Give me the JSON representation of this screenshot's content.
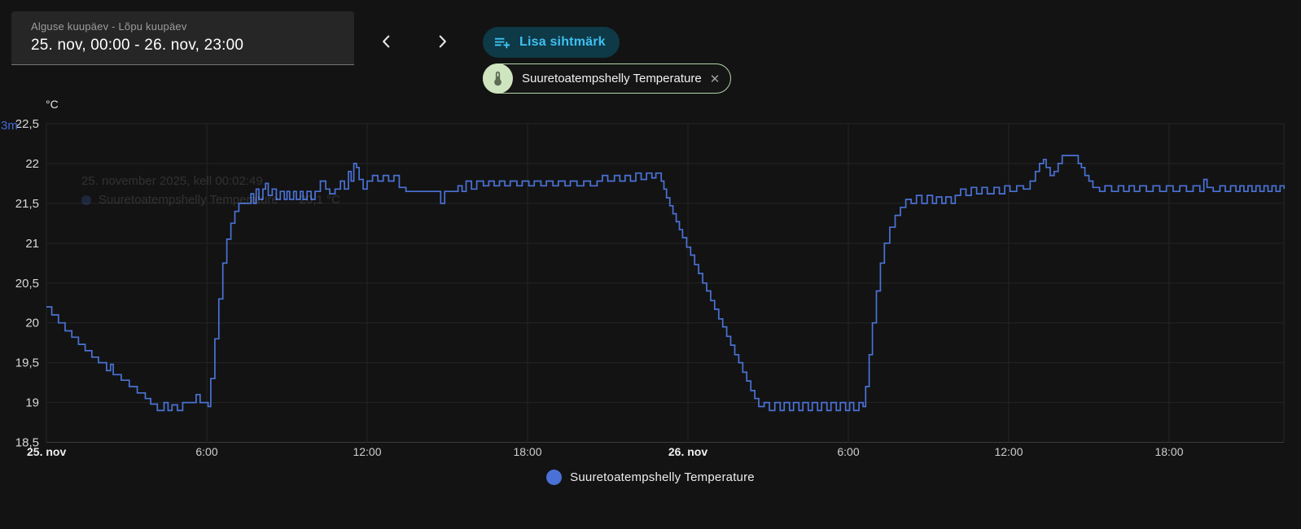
{
  "header": {
    "date_range": {
      "label": "Alguse kuupäev - Lõpu kuupäev",
      "value": "25. nov, 00:00 - 26. nov, 23:00"
    },
    "add_target": {
      "label": "Lisa sihtmärk"
    },
    "chip": {
      "label": "Suuretoatempshelly Temperature",
      "close_glyph": "✕"
    }
  },
  "icons": {
    "prev": "chevron-left",
    "next": "chevron-right",
    "add_target": "playlist-plus",
    "chip": "thermometer",
    "chip_close": "close-x",
    "legend_marker": "circle"
  },
  "colors": {
    "series_blue": "#4a72d6",
    "button_bg": "#0e3947",
    "button_text": "#3ec1f2",
    "chip_avatar_bg": "#cfe5bf",
    "chip_icon": "#5d6d55",
    "grid": "#242424",
    "axis_line": "#3a3a3a",
    "tick_text": "#d8d8d8"
  },
  "axis_overlay_text": "3m",
  "ghost_tooltip": {
    "line1": "25. november 2025, kell 00:02:49",
    "line2_label": "Suuretoatempshelly Temperature",
    "line2_value": "20,1 °C"
  },
  "chart_data": {
    "type": "line",
    "step": true,
    "title": "",
    "xlabel": "",
    "ylabel": "°C",
    "unit": "°C",
    "ylim": [
      18.5,
      22.5
    ],
    "x_range_hours": [
      0,
      46.3
    ],
    "grid": true,
    "legend_position": "bottom-center",
    "y_ticks": [
      {
        "value": 22.5,
        "label": "22,5"
      },
      {
        "value": 22.0,
        "label": "22"
      },
      {
        "value": 21.5,
        "label": "21,5"
      },
      {
        "value": 21.0,
        "label": "21"
      },
      {
        "value": 20.5,
        "label": "20,5"
      },
      {
        "value": 20.0,
        "label": "20"
      },
      {
        "value": 19.5,
        "label": "19,5"
      },
      {
        "value": 19.0,
        "label": "19"
      },
      {
        "value": 18.5,
        "label": "18,5"
      }
    ],
    "x_ticks": [
      {
        "hour": 0,
        "label": "25. nov",
        "bold": true
      },
      {
        "hour": 6,
        "label": "6:00",
        "bold": false
      },
      {
        "hour": 12,
        "label": "12:00",
        "bold": false
      },
      {
        "hour": 18,
        "label": "18:00",
        "bold": false
      },
      {
        "hour": 24,
        "label": "26. nov",
        "bold": true
      },
      {
        "hour": 30,
        "label": "6:00",
        "bold": false
      },
      {
        "hour": 36,
        "label": "12:00",
        "bold": false
      },
      {
        "hour": 42,
        "label": "18:00",
        "bold": false
      }
    ],
    "legend": [
      {
        "label": "Suuretoatempshelly Temperature",
        "color": "#4a72d6"
      }
    ],
    "series": [
      {
        "name": "Suuretoatempshelly Temperature",
        "color": "#4a72d6",
        "points": [
          [
            0,
            20.2
          ],
          [
            0.2,
            20.1
          ],
          [
            0.45,
            20.0
          ],
          [
            0.7,
            19.9
          ],
          [
            0.95,
            19.82
          ],
          [
            1.2,
            19.73
          ],
          [
            1.45,
            19.65
          ],
          [
            1.7,
            19.57
          ],
          [
            1.95,
            19.5
          ],
          [
            2.25,
            19.4
          ],
          [
            2.4,
            19.48
          ],
          [
            2.5,
            19.35
          ],
          [
            2.8,
            19.28
          ],
          [
            3.1,
            19.2
          ],
          [
            3.4,
            19.12
          ],
          [
            3.7,
            19.05
          ],
          [
            3.9,
            18.98
          ],
          [
            4.15,
            18.9
          ],
          [
            4.4,
            19.0
          ],
          [
            4.55,
            18.9
          ],
          [
            4.7,
            18.97
          ],
          [
            4.9,
            18.9
          ],
          [
            5.1,
            19.0
          ],
          [
            5.6,
            19.1
          ],
          [
            5.75,
            19.0
          ],
          [
            6.05,
            18.95
          ],
          [
            6.15,
            19.3
          ],
          [
            6.3,
            19.8
          ],
          [
            6.45,
            20.3
          ],
          [
            6.6,
            20.75
          ],
          [
            6.75,
            21.05
          ],
          [
            6.9,
            21.25
          ],
          [
            7.05,
            21.4
          ],
          [
            7.2,
            21.5
          ],
          [
            7.55,
            21.5
          ],
          [
            7.65,
            21.62
          ],
          [
            7.75,
            21.5
          ],
          [
            7.85,
            21.68
          ],
          [
            7.95,
            21.55
          ],
          [
            8.1,
            21.68
          ],
          [
            8.2,
            21.75
          ],
          [
            8.3,
            21.6
          ],
          [
            8.45,
            21.68
          ],
          [
            8.6,
            21.55
          ],
          [
            8.75,
            21.65
          ],
          [
            8.9,
            21.55
          ],
          [
            9.0,
            21.65
          ],
          [
            9.1,
            21.55
          ],
          [
            9.25,
            21.65
          ],
          [
            9.35,
            21.55
          ],
          [
            9.5,
            21.65
          ],
          [
            9.6,
            21.55
          ],
          [
            9.75,
            21.65
          ],
          [
            9.9,
            21.55
          ],
          [
            10.05,
            21.65
          ],
          [
            10.25,
            21.78
          ],
          [
            10.45,
            21.68
          ],
          [
            10.6,
            21.62
          ],
          [
            10.8,
            21.68
          ],
          [
            11.0,
            21.78
          ],
          [
            11.15,
            21.68
          ],
          [
            11.3,
            21.9
          ],
          [
            11.4,
            21.78
          ],
          [
            11.5,
            22.0
          ],
          [
            11.6,
            21.95
          ],
          [
            11.7,
            21.8
          ],
          [
            11.85,
            21.68
          ],
          [
            12.0,
            21.78
          ],
          [
            12.2,
            21.85
          ],
          [
            12.4,
            21.78
          ],
          [
            12.6,
            21.85
          ],
          [
            12.8,
            21.78
          ],
          [
            13.0,
            21.85
          ],
          [
            13.2,
            21.7
          ],
          [
            13.45,
            21.65
          ],
          [
            14.75,
            21.5
          ],
          [
            14.9,
            21.65
          ],
          [
            15.4,
            21.72
          ],
          [
            15.55,
            21.65
          ],
          [
            15.7,
            21.78
          ],
          [
            15.9,
            21.68
          ],
          [
            16.1,
            21.78
          ],
          [
            16.35,
            21.72
          ],
          [
            16.55,
            21.78
          ],
          [
            16.75,
            21.72
          ],
          [
            16.95,
            21.78
          ],
          [
            17.15,
            21.72
          ],
          [
            17.35,
            21.78
          ],
          [
            17.6,
            21.72
          ],
          [
            17.8,
            21.78
          ],
          [
            18.05,
            21.72
          ],
          [
            18.25,
            21.78
          ],
          [
            18.5,
            21.72
          ],
          [
            18.7,
            21.78
          ],
          [
            18.95,
            21.72
          ],
          [
            19.15,
            21.78
          ],
          [
            19.4,
            21.72
          ],
          [
            19.6,
            21.78
          ],
          [
            19.85,
            21.72
          ],
          [
            20.1,
            21.78
          ],
          [
            20.35,
            21.72
          ],
          [
            20.6,
            21.78
          ],
          [
            20.8,
            21.85
          ],
          [
            21.0,
            21.78
          ],
          [
            21.25,
            21.85
          ],
          [
            21.45,
            21.78
          ],
          [
            21.65,
            21.85
          ],
          [
            21.85,
            21.78
          ],
          [
            22.05,
            21.88
          ],
          [
            22.25,
            21.8
          ],
          [
            22.45,
            21.88
          ],
          [
            22.65,
            21.82
          ],
          [
            22.8,
            21.88
          ],
          [
            23.0,
            21.78
          ],
          [
            23.1,
            21.68
          ],
          [
            23.2,
            21.57
          ],
          [
            23.32,
            21.47
          ],
          [
            23.44,
            21.37
          ],
          [
            23.56,
            21.27
          ],
          [
            23.68,
            21.17
          ],
          [
            23.8,
            21.07
          ],
          [
            23.95,
            20.95
          ],
          [
            24.1,
            20.85
          ],
          [
            24.25,
            20.73
          ],
          [
            24.4,
            20.62
          ],
          [
            24.55,
            20.5
          ],
          [
            24.7,
            20.4
          ],
          [
            24.85,
            20.28
          ],
          [
            25.0,
            20.17
          ],
          [
            25.15,
            20.05
          ],
          [
            25.3,
            19.95
          ],
          [
            25.45,
            19.83
          ],
          [
            25.6,
            19.72
          ],
          [
            25.75,
            19.6
          ],
          [
            25.9,
            19.5
          ],
          [
            26.05,
            19.38
          ],
          [
            26.2,
            19.27
          ],
          [
            26.35,
            19.15
          ],
          [
            26.5,
            19.05
          ],
          [
            26.65,
            18.95
          ],
          [
            26.85,
            19.0
          ],
          [
            27.05,
            18.9
          ],
          [
            27.25,
            19.0
          ],
          [
            27.45,
            18.9
          ],
          [
            27.6,
            19.0
          ],
          [
            27.8,
            18.9
          ],
          [
            27.95,
            19.0
          ],
          [
            28.15,
            18.9
          ],
          [
            28.3,
            19.0
          ],
          [
            28.5,
            18.9
          ],
          [
            28.65,
            19.0
          ],
          [
            28.85,
            18.9
          ],
          [
            29.0,
            19.0
          ],
          [
            29.2,
            18.9
          ],
          [
            29.35,
            19.0
          ],
          [
            29.55,
            18.9
          ],
          [
            29.7,
            19.0
          ],
          [
            29.9,
            18.9
          ],
          [
            30.05,
            19.0
          ],
          [
            30.2,
            18.9
          ],
          [
            30.4,
            19.0
          ],
          [
            30.55,
            18.95
          ],
          [
            30.65,
            19.2
          ],
          [
            30.78,
            19.6
          ],
          [
            30.9,
            20.0
          ],
          [
            31.05,
            20.4
          ],
          [
            31.2,
            20.75
          ],
          [
            31.35,
            21.0
          ],
          [
            31.55,
            21.2
          ],
          [
            31.75,
            21.35
          ],
          [
            31.95,
            21.45
          ],
          [
            32.15,
            21.55
          ],
          [
            32.35,
            21.5
          ],
          [
            32.55,
            21.6
          ],
          [
            32.75,
            21.5
          ],
          [
            32.95,
            21.6
          ],
          [
            33.15,
            21.5
          ],
          [
            33.3,
            21.58
          ],
          [
            33.5,
            21.5
          ],
          [
            33.65,
            21.58
          ],
          [
            33.85,
            21.5
          ],
          [
            34.0,
            21.6
          ],
          [
            34.2,
            21.68
          ],
          [
            34.4,
            21.6
          ],
          [
            34.6,
            21.7
          ],
          [
            34.8,
            21.62
          ],
          [
            35.0,
            21.7
          ],
          [
            35.2,
            21.62
          ],
          [
            35.45,
            21.7
          ],
          [
            35.65,
            21.62
          ],
          [
            35.85,
            21.72
          ],
          [
            36.05,
            21.65
          ],
          [
            36.3,
            21.72
          ],
          [
            36.55,
            21.68
          ],
          [
            36.8,
            21.78
          ],
          [
            37.0,
            21.9
          ],
          [
            37.15,
            22.0
          ],
          [
            37.3,
            22.05
          ],
          [
            37.4,
            21.95
          ],
          [
            37.55,
            21.85
          ],
          [
            37.7,
            21.9
          ],
          [
            37.85,
            22.0
          ],
          [
            38.0,
            22.1
          ],
          [
            38.45,
            22.1
          ],
          [
            38.6,
            22.0
          ],
          [
            38.72,
            21.95
          ],
          [
            38.85,
            21.85
          ],
          [
            39.0,
            21.78
          ],
          [
            39.15,
            21.7
          ],
          [
            39.4,
            21.65
          ],
          [
            39.6,
            21.72
          ],
          [
            39.85,
            21.65
          ],
          [
            40.1,
            21.72
          ],
          [
            40.3,
            21.65
          ],
          [
            40.5,
            21.72
          ],
          [
            40.7,
            21.65
          ],
          [
            40.9,
            21.72
          ],
          [
            41.15,
            21.65
          ],
          [
            41.4,
            21.72
          ],
          [
            41.65,
            21.65
          ],
          [
            41.9,
            21.72
          ],
          [
            42.15,
            21.65
          ],
          [
            42.4,
            21.72
          ],
          [
            42.65,
            21.65
          ],
          [
            42.9,
            21.72
          ],
          [
            43.15,
            21.65
          ],
          [
            43.3,
            21.8
          ],
          [
            43.42,
            21.7
          ],
          [
            43.65,
            21.65
          ],
          [
            43.9,
            21.72
          ],
          [
            44.1,
            21.65
          ],
          [
            44.3,
            21.72
          ],
          [
            44.5,
            21.65
          ],
          [
            44.65,
            21.72
          ],
          [
            44.8,
            21.65
          ],
          [
            44.95,
            21.72
          ],
          [
            45.1,
            21.65
          ],
          [
            45.25,
            21.72
          ],
          [
            45.4,
            21.65
          ],
          [
            45.55,
            21.72
          ],
          [
            45.7,
            21.65
          ],
          [
            45.85,
            21.72
          ],
          [
            46.0,
            21.65
          ],
          [
            46.15,
            21.72
          ],
          [
            46.3,
            21.68
          ]
        ]
      }
    ]
  }
}
